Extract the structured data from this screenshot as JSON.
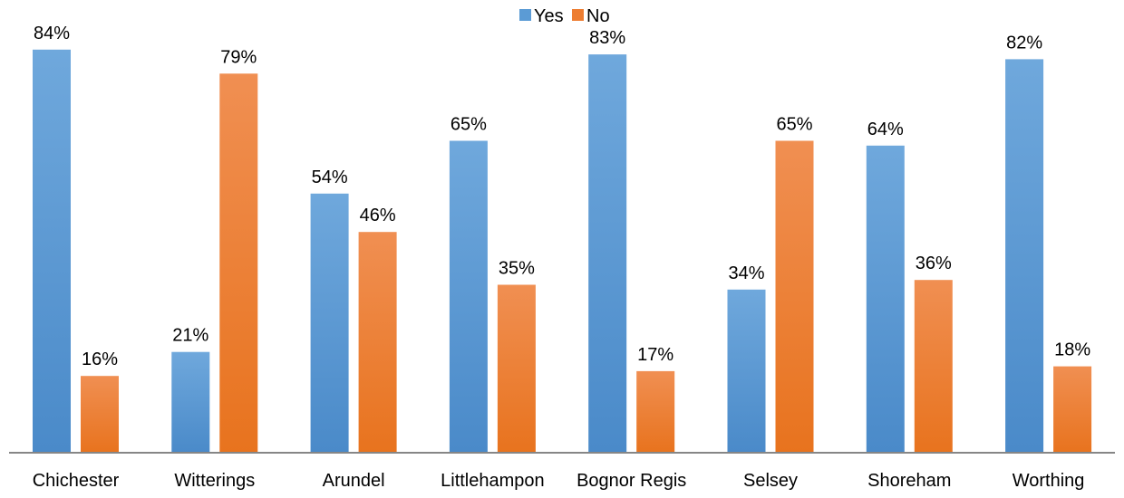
{
  "chart_data": {
    "type": "bar",
    "title": "",
    "xlabel": "",
    "ylabel": "",
    "ylim": [
      0,
      90
    ],
    "grid": false,
    "legend_position": "top-center",
    "categories": [
      "Chichester",
      "Witterings",
      "Arundel",
      "Littlehampon",
      "Bognor Regis",
      "Selsey",
      "Shoreham",
      "Worthing"
    ],
    "series": [
      {
        "name": "Yes",
        "values": [
          84,
          21,
          54,
          65,
          83,
          34,
          64,
          82
        ],
        "labels": [
          "84%",
          "21%",
          "54%",
          "65%",
          "83%",
          "34%",
          "64%",
          "82%"
        ],
        "color": "#5B9BD5"
      },
      {
        "name": "No",
        "values": [
          16,
          79,
          46,
          35,
          17,
          65,
          36,
          18
        ],
        "labels": [
          "16%",
          "79%",
          "46%",
          "35%",
          "17%",
          "65%",
          "36%",
          "18%"
        ],
        "color": "#ED7D31"
      }
    ]
  }
}
